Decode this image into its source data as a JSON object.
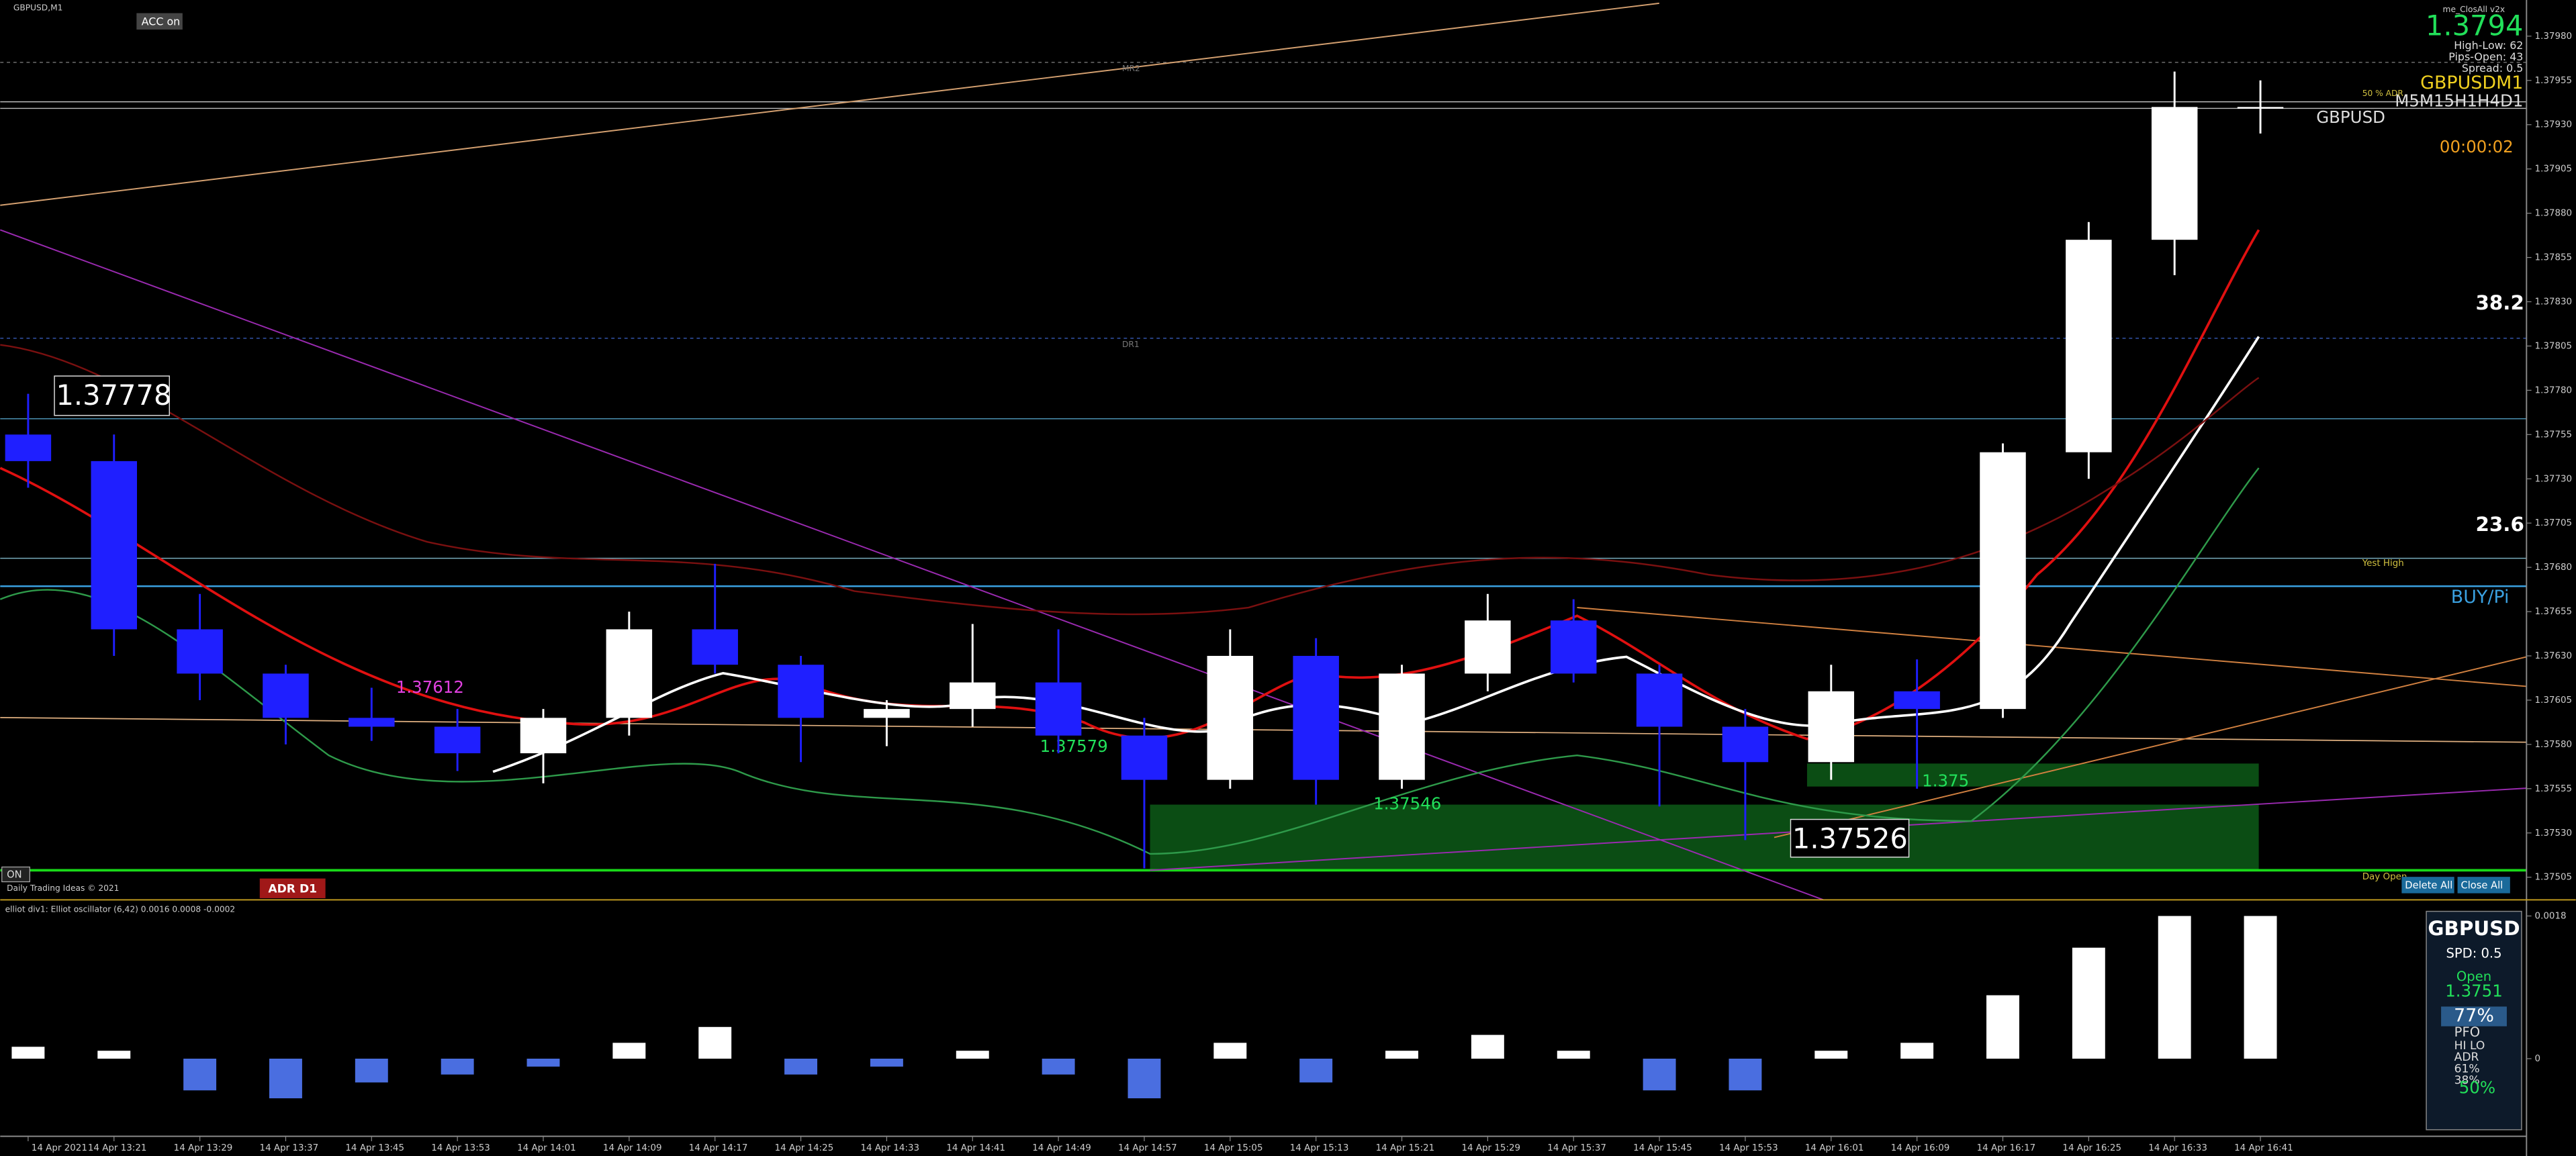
{
  "chart_data": [
    {
      "type": "candlestick",
      "categories": [
        "14 Apr 2021",
        "14 Apr 13:21",
        "14 Apr 13:29",
        "14 Apr 13:37",
        "14 Apr 13:45",
        "14 Apr 13:53",
        "14 Apr 14:01",
        "14 Apr 14:09",
        "14 Apr 14:17",
        "14 Apr 14:25",
        "14 Apr 14:33",
        "14 Apr 14:41",
        "14 Apr 14:49",
        "14 Apr 14:57",
        "14 Apr 15:05",
        "14 Apr 15:13",
        "14 Apr 15:21",
        "14 Apr 15:29",
        "14 Apr 15:37",
        "14 Apr 15:45",
        "14 Apr 15:53",
        "14 Apr 16:01",
        "14 Apr 16:09",
        "14 Apr 16:17",
        "14 Apr 16:25",
        "14 Apr 16:33",
        "14 Apr 16:41"
      ],
      "open": [
        1.37755,
        1.3774,
        1.37645,
        1.3762,
        1.37595,
        1.3759,
        1.37575,
        1.37595,
        1.37645,
        1.37625,
        1.37595,
        1.376,
        1.37615,
        1.37585,
        1.3756,
        1.3763,
        1.3756,
        1.3762,
        1.3765,
        1.3762,
        1.3759,
        1.3757,
        1.3761,
        1.376,
        1.37745,
        1.37865,
        1.3794
      ],
      "high": [
        1.37778,
        1.37755,
        1.37665,
        1.37625,
        1.37612,
        1.376,
        1.376,
        1.37655,
        1.37682,
        1.3763,
        1.37605,
        1.37648,
        1.37645,
        1.37595,
        1.37645,
        1.3764,
        1.37625,
        1.37665,
        1.37662,
        1.37625,
        1.376,
        1.37625,
        1.37628,
        1.3775,
        1.37875,
        1.3796,
        1.37955
      ],
      "low": [
        1.37725,
        1.3763,
        1.37605,
        1.3758,
        1.37582,
        1.37565,
        1.37558,
        1.37585,
        1.3762,
        1.3757,
        1.37579,
        1.3759,
        1.37575,
        1.3751,
        1.37555,
        1.37546,
        1.37555,
        1.3761,
        1.37615,
        1.37545,
        1.37526,
        1.3756,
        1.37555,
        1.37595,
        1.3773,
        1.37845,
        1.37925
      ],
      "close": [
        1.3774,
        1.37645,
        1.3762,
        1.37595,
        1.3759,
        1.37575,
        1.37595,
        1.37645,
        1.37625,
        1.37595,
        1.376,
        1.37615,
        1.37585,
        1.3756,
        1.3763,
        1.3756,
        1.3762,
        1.3765,
        1.3762,
        1.3759,
        1.3757,
        1.3761,
        1.376,
        1.37745,
        1.37865,
        1.3794,
        1.3794
      ],
      "up_color": "#ffffff",
      "down_color": "#1f1fff",
      "ylim": [
        1.37495,
        1.37993
      ],
      "yticks": [
        {
          "value": 1.37505,
          "label": "1.37505"
        },
        {
          "value": 1.3753,
          "label": "1.37530"
        },
        {
          "value": 1.37555,
          "label": "1.37555"
        },
        {
          "value": 1.3758,
          "label": "1.37580"
        },
        {
          "value": 1.37605,
          "label": "1.37605"
        },
        {
          "value": 1.3763,
          "label": "1.37630"
        },
        {
          "value": 1.37655,
          "label": "1.37655"
        },
        {
          "value": 1.3768,
          "label": "1.37680"
        },
        {
          "value": 1.37705,
          "label": "1.37705"
        },
        {
          "value": 1.3773,
          "label": "1.37730"
        },
        {
          "value": 1.37755,
          "label": "1.37755"
        },
        {
          "value": 1.3778,
          "label": "1.37780"
        },
        {
          "value": 1.37805,
          "label": "1.37805"
        },
        {
          "value": 1.3783,
          "label": "1.37830"
        },
        {
          "value": 1.37855,
          "label": "1.37855"
        },
        {
          "value": 1.3788,
          "label": "1.37880"
        },
        {
          "value": 1.37905,
          "label": "1.37905"
        },
        {
          "value": 1.3793,
          "label": "1.37930"
        },
        {
          "value": 1.37955,
          "label": "1.37955"
        },
        {
          "value": 1.3798,
          "label": "1.37980"
        }
      ],
      "annotations": [
        "GBPUSD,M1",
        "ACC on",
        "1.3794",
        "High-Low: 62",
        "Pips-Open: 43",
        "Spread: 0.5",
        "GBPUSDM1",
        "M5M15H1H4D1",
        "GBPUSD",
        "00:00:02",
        "38.2",
        "23.6",
        "BUY/Pi",
        "Yest High",
        "Day Open",
        "1.37778",
        "1.37612",
        "1.37579",
        "1.37546",
        "1.37526",
        "1.375",
        "ADR D1",
        "Daily Trading Ideas © 2021",
        "ON",
        "Delete All",
        "Close All",
        "me_ClosAll v2x",
        "50 % ADR",
        "DR1",
        "MR2"
      ]
    },
    {
      "type": "bar",
      "values": [
        0.00015,
        0.0001,
        -0.0004,
        -0.0005,
        -0.0003,
        -0.0002,
        -0.0001,
        0.0002,
        0.0004,
        -0.0002,
        -0.0001,
        0.0001,
        -0.0002,
        -0.0005,
        0.0002,
        -0.0003,
        0.0001,
        0.0003,
        0.0001,
        -0.0004,
        -0.0004,
        0.0001,
        0.0002,
        0.0008,
        0.0014,
        0.0018,
        0.0018
      ],
      "color": "#ffffff",
      "neg_color": "#4a6ee0",
      "ylim": [
        -0.001,
        0.0019
      ],
      "yticks": [
        {
          "value": 0.0018,
          "label": "0.0018"
        },
        0
      ],
      "annotations": [
        "elliot div1: Elliot oscillator (6,42) 0.0016 0.0008 -0.0002",
        "GBPUSD",
        "SPD: 0.5",
        "Open",
        "1.3751",
        "77%",
        "PFO",
        "HI LO",
        "ADR",
        "61%",
        "38%",
        "50%"
      ]
    }
  ]
}
